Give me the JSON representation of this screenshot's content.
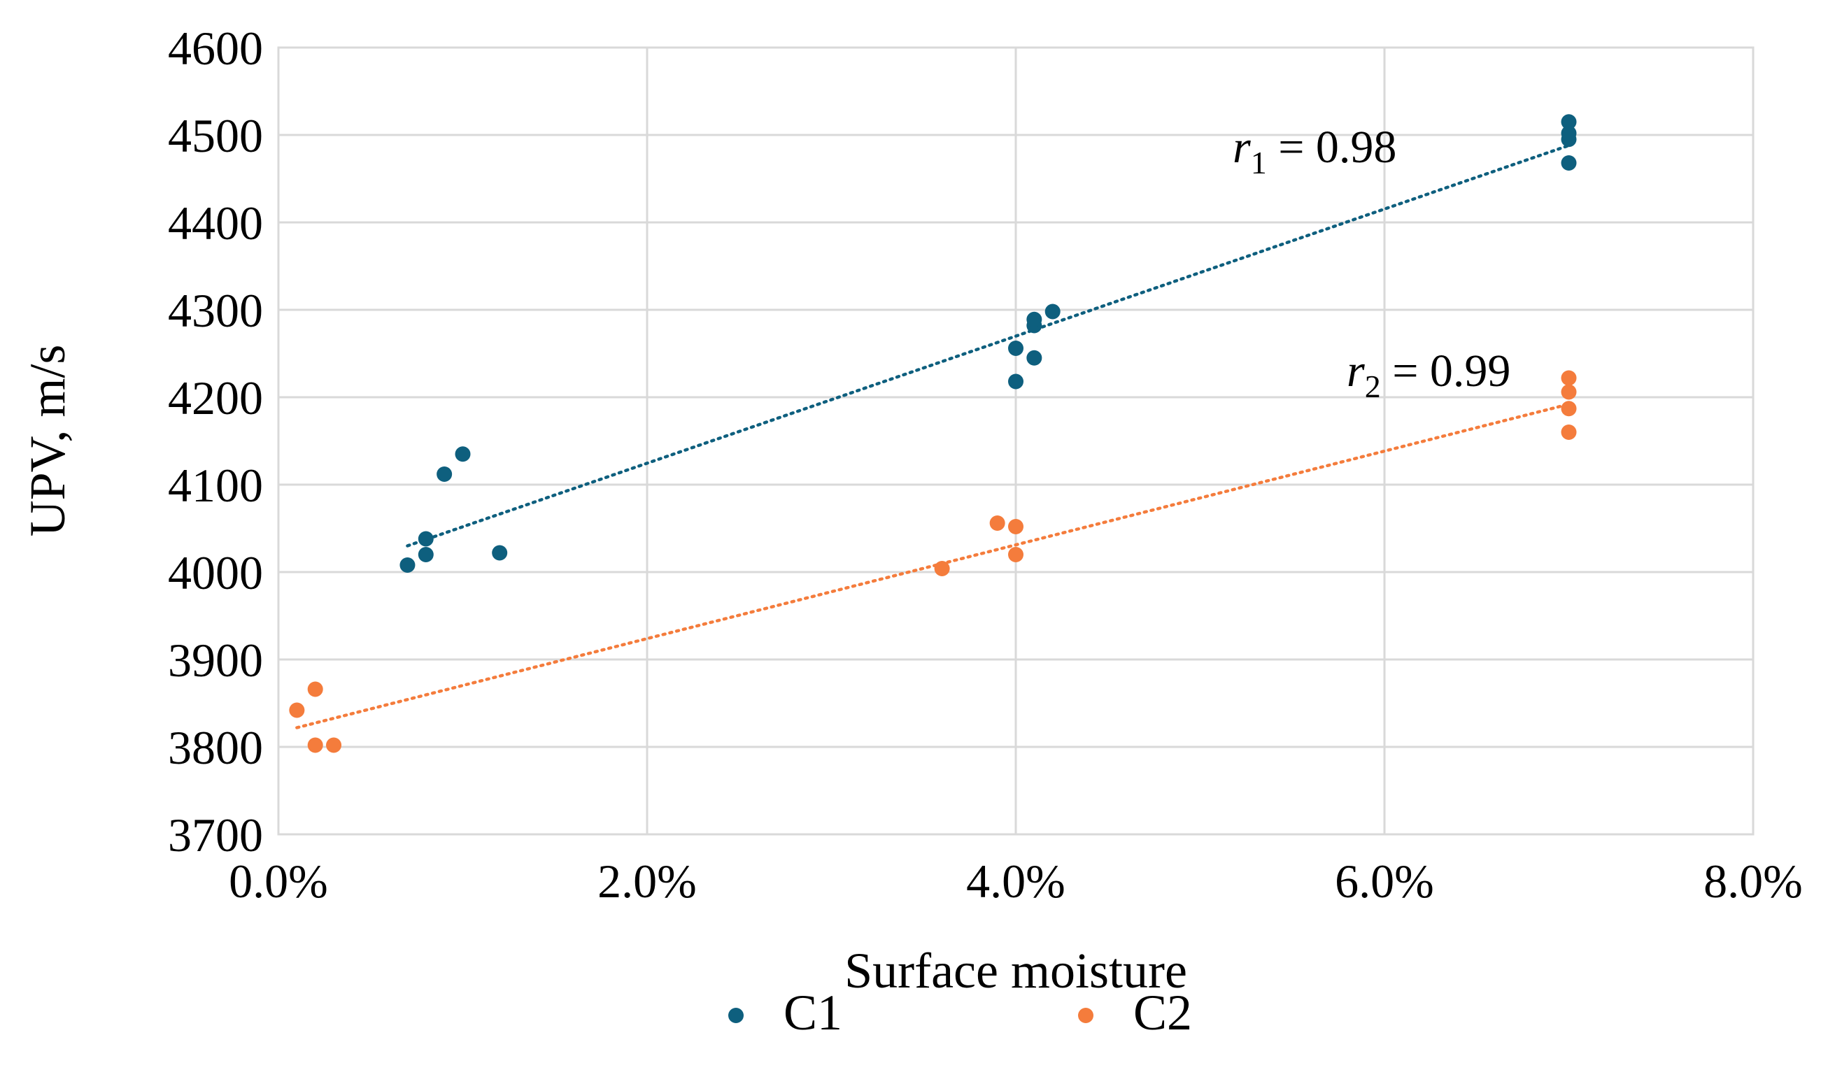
{
  "chart_data": {
    "type": "scatter",
    "title": "",
    "xlabel": "Surface moisture",
    "ylabel": "UPV, m/s",
    "xlim": [
      0.0,
      0.08
    ],
    "ylim": [
      3700,
      4600
    ],
    "x_ticks": [
      0.0,
      0.02,
      0.04,
      0.06,
      0.08
    ],
    "x_tick_labels": [
      "0.0%",
      "2.0%",
      "4.0%",
      "6.0%",
      "8.0%"
    ],
    "y_ticks": [
      3700,
      3800,
      3900,
      4000,
      4100,
      4200,
      4300,
      4400,
      4500,
      4600
    ],
    "y_tick_labels": [
      "3700",
      "3800",
      "3900",
      "4000",
      "4100",
      "4200",
      "4300",
      "4400",
      "4500",
      "4600"
    ],
    "grid": true,
    "legend_position": "bottom",
    "series": [
      {
        "name": "C1",
        "color": "#0e5f7e",
        "points": [
          {
            "x": 0.007,
            "y": 4008
          },
          {
            "x": 0.008,
            "y": 4020
          },
          {
            "x": 0.008,
            "y": 4038
          },
          {
            "x": 0.009,
            "y": 4112
          },
          {
            "x": 0.01,
            "y": 4135
          },
          {
            "x": 0.012,
            "y": 4022
          },
          {
            "x": 0.04,
            "y": 4218
          },
          {
            "x": 0.04,
            "y": 4256
          },
          {
            "x": 0.041,
            "y": 4245
          },
          {
            "x": 0.041,
            "y": 4282
          },
          {
            "x": 0.041,
            "y": 4289
          },
          {
            "x": 0.042,
            "y": 4298
          },
          {
            "x": 0.07,
            "y": 4468
          },
          {
            "x": 0.07,
            "y": 4495
          },
          {
            "x": 0.07,
            "y": 4502
          },
          {
            "x": 0.07,
            "y": 4515
          }
        ],
        "trendline": {
          "style": "dotted",
          "x": [
            0.007,
            0.07
          ],
          "y": [
            4030,
            4488
          ],
          "label_prefix": "r",
          "label_subscript": "1",
          "label_suffix": " = 0.98"
        }
      },
      {
        "name": "C2",
        "color": "#f47c3c",
        "points": [
          {
            "x": 0.001,
            "y": 3842
          },
          {
            "x": 0.002,
            "y": 3866
          },
          {
            "x": 0.002,
            "y": 3802
          },
          {
            "x": 0.003,
            "y": 3802
          },
          {
            "x": 0.036,
            "y": 4004
          },
          {
            "x": 0.039,
            "y": 4056
          },
          {
            "x": 0.04,
            "y": 4052
          },
          {
            "x": 0.04,
            "y": 4020
          },
          {
            "x": 0.07,
            "y": 4160
          },
          {
            "x": 0.07,
            "y": 4187
          },
          {
            "x": 0.07,
            "y": 4206
          },
          {
            "x": 0.07,
            "y": 4222
          }
        ],
        "trendline": {
          "style": "dotted",
          "x": [
            0.001,
            0.07
          ],
          "y": [
            3822,
            4192
          ],
          "label_prefix": "r",
          "label_subscript": "2",
          "label_suffix": " = 0.99"
        }
      }
    ]
  }
}
